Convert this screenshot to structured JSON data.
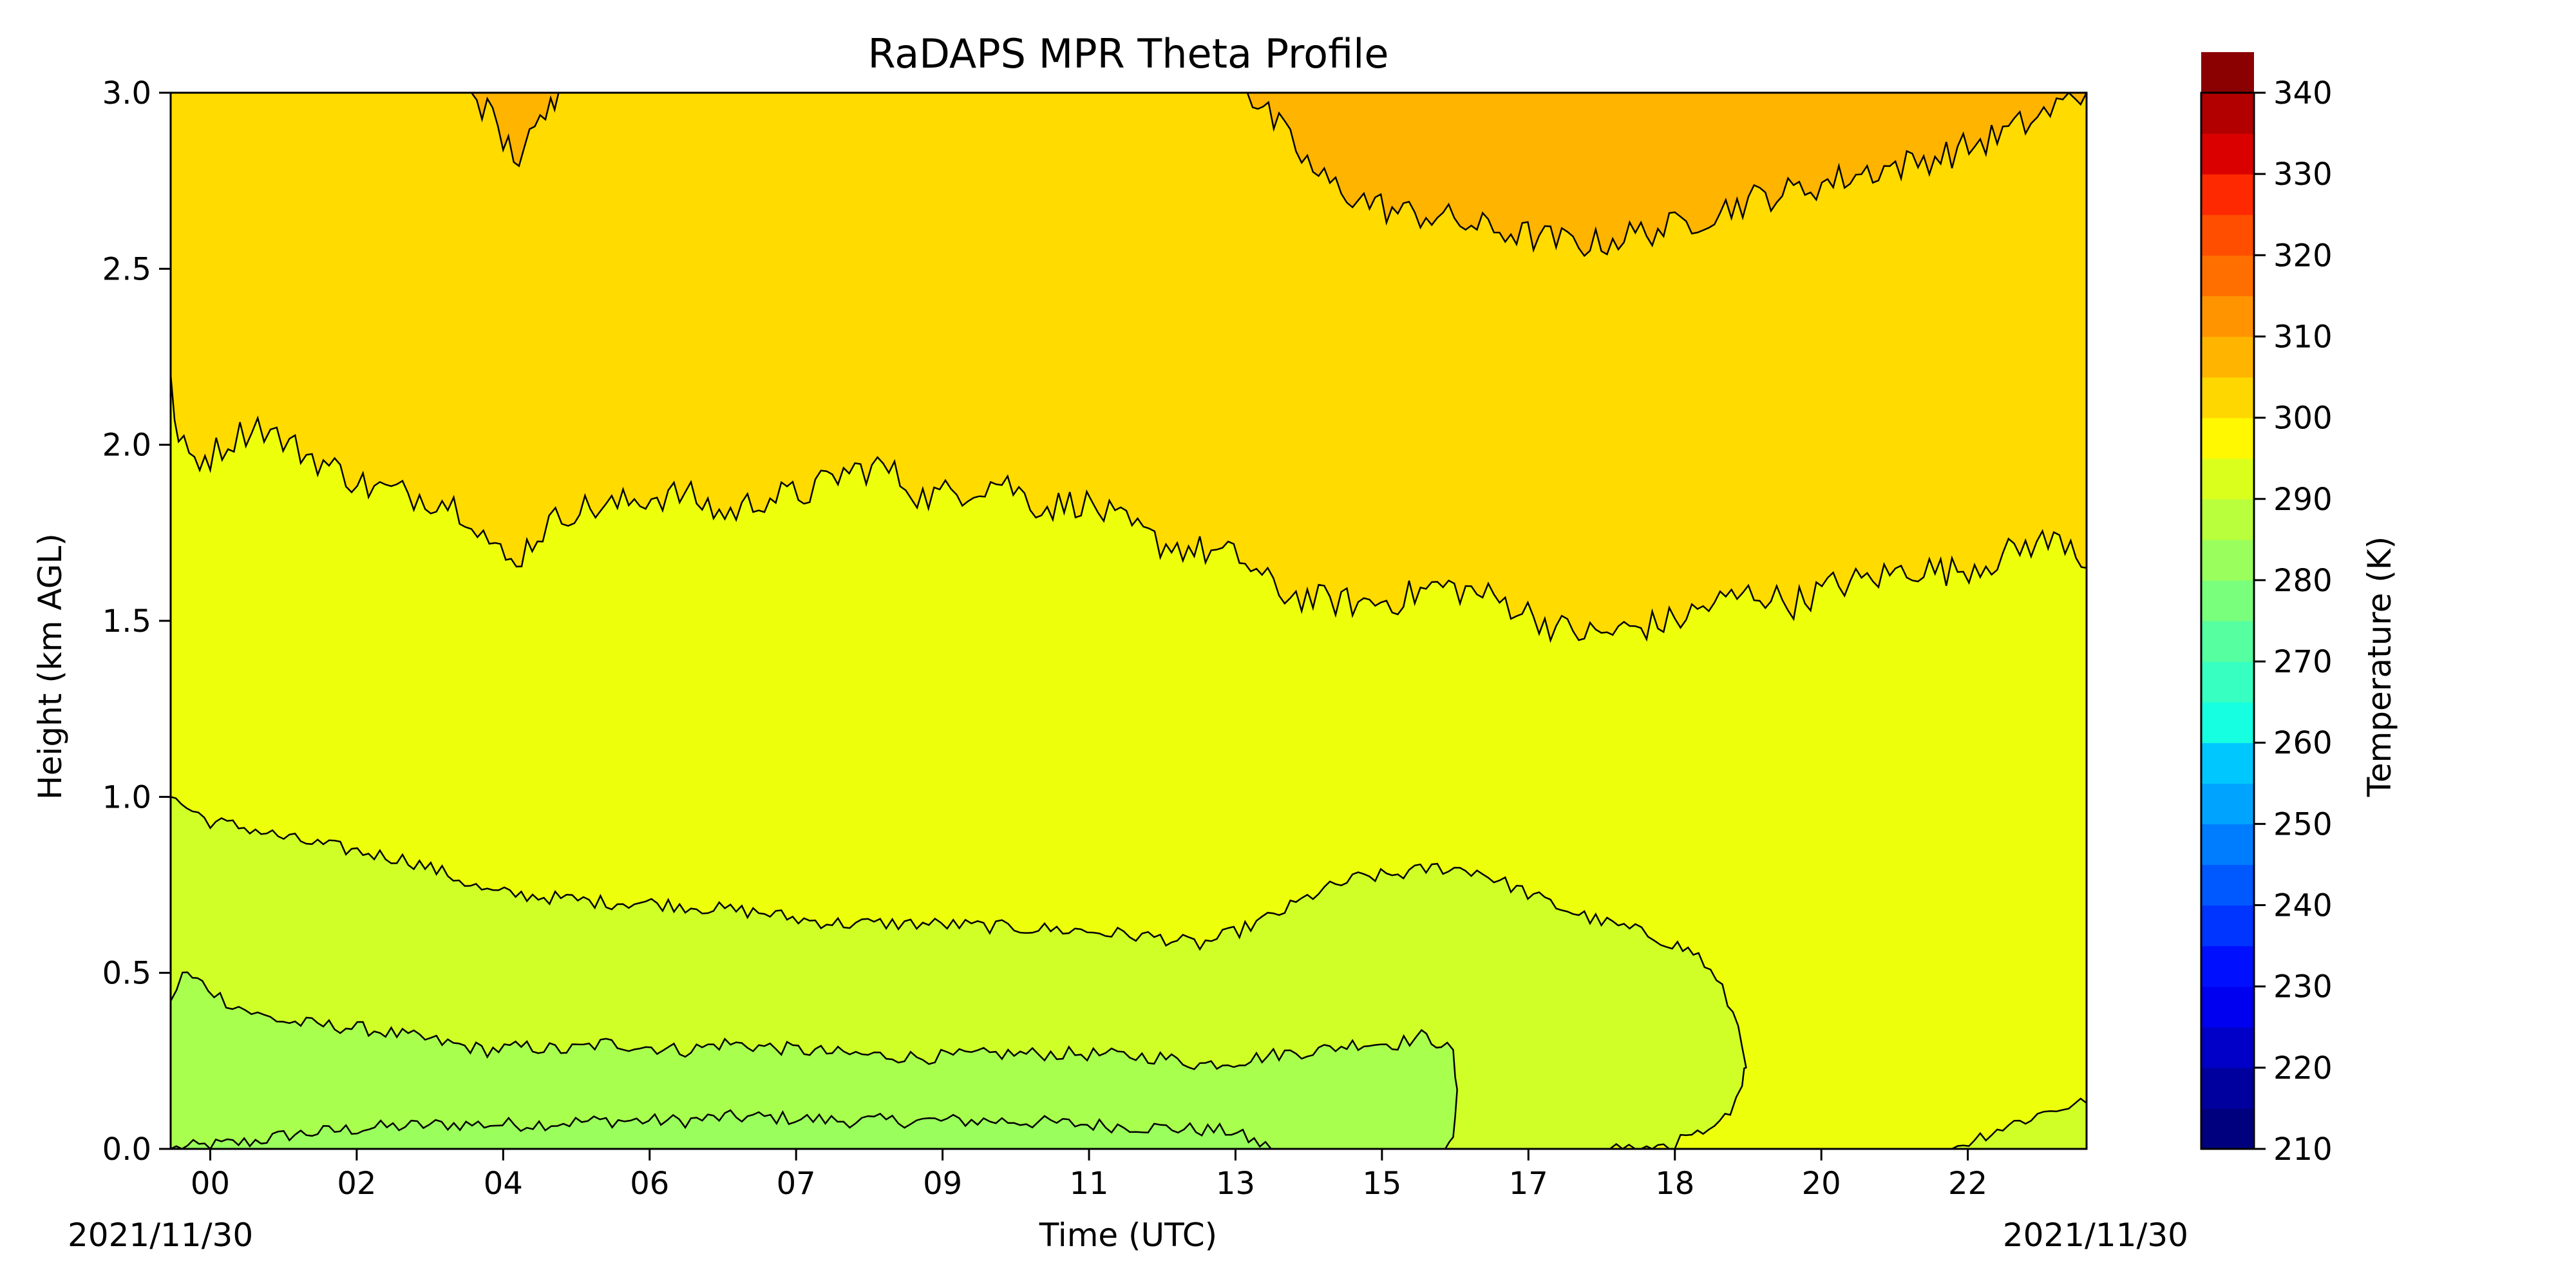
{
  "chart_data": {
    "type": "contour",
    "title": "RaDAPS MPR Theta Profile",
    "xlabel": "Time (UTC)",
    "ylabel": "Height (km AGL)",
    "colorbar_label": "Temperature (K)",
    "start_date_label": "2021/11/30",
    "end_date_label": "2021/11/30",
    "xlim_hours": [
      -0.5,
      23.7
    ],
    "x_ticks": [
      {
        "hour": 0,
        "label": "00"
      },
      {
        "hour": 1.85,
        "label": "02"
      },
      {
        "hour": 3.7,
        "label": "04"
      },
      {
        "hour": 5.55,
        "label": "06"
      },
      {
        "hour": 7.4,
        "label": "07"
      },
      {
        "hour": 9.25,
        "label": "09"
      },
      {
        "hour": 11.1,
        "label": "11"
      },
      {
        "hour": 12.95,
        "label": "13"
      },
      {
        "hour": 14.8,
        "label": "15"
      },
      {
        "hour": 16.65,
        "label": "17"
      },
      {
        "hour": 18.5,
        "label": "18"
      },
      {
        "hour": 20.35,
        "label": "20"
      },
      {
        "hour": 22.2,
        "label": "22"
      }
    ],
    "ylim": [
      0,
      3
    ],
    "y_ticks": [
      {
        "value": 0,
        "label": "0.0"
      },
      {
        "value": 0.5,
        "label": "0.5"
      },
      {
        "value": 1,
        "label": "1.0"
      },
      {
        "value": 1.5,
        "label": "1.5"
      },
      {
        "value": 2,
        "label": "2.0"
      },
      {
        "value": 2.5,
        "label": "2.5"
      },
      {
        "value": 3,
        "label": "3.0"
      }
    ],
    "colorbar": {
      "vmin": 210,
      "vmax": 340,
      "step": 5,
      "colors": [
        "#00007f",
        "#00009f",
        "#0000c8",
        "#0000f1",
        "#0010ff",
        "#0034ff",
        "#0058ff",
        "#007cff",
        "#00a4ff",
        "#00c8fe",
        "#16ffe1",
        "#36ffc1",
        "#56ffa0",
        "#7aff7d",
        "#9aff5d",
        "#baff3c",
        "#dbff1c",
        "#fff800",
        "#ffd700",
        "#ffb400",
        "#ff9400",
        "#ff6f00",
        "#ff4e00",
        "#fe2900",
        "#db0000",
        "#b20000",
        "#8b0000"
      ],
      "ticks": [
        {
          "value": 210,
          "label": "210"
        },
        {
          "value": 220,
          "label": "220"
        },
        {
          "value": 230,
          "label": "230"
        },
        {
          "value": 240,
          "label": "240"
        },
        {
          "value": 250,
          "label": "250"
        },
        {
          "value": 260,
          "label": "260"
        },
        {
          "value": 270,
          "label": "270"
        },
        {
          "value": 280,
          "label": "280"
        },
        {
          "value": 290,
          "label": "290"
        },
        {
          "value": 300,
          "label": "300"
        },
        {
          "value": 310,
          "label": "310"
        },
        {
          "value": 320,
          "label": "320"
        },
        {
          "value": 330,
          "label": "330"
        },
        {
          "value": 340,
          "label": "340"
        }
      ]
    },
    "bands": [
      {
        "range": [
          275,
          280
        ],
        "color": "#9aff5d"
      },
      {
        "range": [
          280,
          285
        ],
        "color": "#a8ff4e"
      },
      {
        "range": [
          285,
          290
        ],
        "color": "#d0ff28"
      },
      {
        "range": [
          290,
          295
        ],
        "color": "#eeff0c"
      },
      {
        "range": [
          295,
          300
        ],
        "color": "#ffdb00"
      },
      {
        "range": [
          300,
          305
        ],
        "color": "#ffb400"
      }
    ],
    "contours": [
      {
        "level": 280,
        "points": [
          [
            -0.5,
            0.0
          ],
          [
            0,
            0.01
          ],
          [
            0.5,
            0.02
          ],
          [
            1,
            0.04
          ],
          [
            1.5,
            0.05
          ],
          [
            2,
            0.06
          ],
          [
            3,
            0.07
          ],
          [
            4,
            0.07
          ],
          [
            5,
            0.08
          ],
          [
            6,
            0.08
          ],
          [
            6.5,
            0.09
          ],
          [
            7,
            0.09
          ],
          [
            8,
            0.08
          ],
          [
            9,
            0.08
          ],
          [
            10,
            0.08
          ],
          [
            11,
            0.07
          ],
          [
            12,
            0.06
          ],
          [
            12.9,
            0.05
          ],
          [
            13.4,
            0.0
          ]
        ]
      },
      {
        "level": 285,
        "points": [
          [
            -0.5,
            0.42
          ],
          [
            -0.35,
            0.5
          ],
          [
            -0.1,
            0.47
          ],
          [
            0.2,
            0.42
          ],
          [
            0.6,
            0.38
          ],
          [
            1,
            0.36
          ],
          [
            1.5,
            0.35
          ],
          [
            2,
            0.34
          ],
          [
            2.5,
            0.32
          ],
          [
            3,
            0.3
          ],
          [
            3.5,
            0.28
          ],
          [
            4,
            0.29
          ],
          [
            4.5,
            0.28
          ],
          [
            5,
            0.3
          ],
          [
            5.5,
            0.29
          ],
          [
            6,
            0.28
          ],
          [
            6.5,
            0.3
          ],
          [
            7,
            0.29
          ],
          [
            7.5,
            0.28
          ],
          [
            8,
            0.27
          ],
          [
            9,
            0.26
          ],
          [
            10,
            0.27
          ],
          [
            11,
            0.27
          ],
          [
            12,
            0.26
          ],
          [
            12.5,
            0.24
          ],
          [
            13,
            0.25
          ],
          [
            13.5,
            0.27
          ],
          [
            14,
            0.28
          ],
          [
            14.5,
            0.3
          ],
          [
            15,
            0.3
          ],
          [
            15.3,
            0.32
          ],
          [
            15.55,
            0.3
          ],
          [
            15.7,
            0.27
          ],
          [
            15.75,
            0.15
          ],
          [
            15.7,
            0.05
          ],
          [
            15.6,
            0.0
          ]
        ]
      },
      {
        "level": 290,
        "points": [
          [
            -0.5,
            1.0
          ],
          [
            -0.3,
            0.97
          ],
          [
            0,
            0.93
          ],
          [
            0.5,
            0.91
          ],
          [
            1,
            0.88
          ],
          [
            1.5,
            0.86
          ],
          [
            2,
            0.84
          ],
          [
            2.5,
            0.82
          ],
          [
            3,
            0.78
          ],
          [
            3.5,
            0.73
          ],
          [
            4,
            0.72
          ],
          [
            4.5,
            0.71
          ],
          [
            5,
            0.7
          ],
          [
            5.5,
            0.7
          ],
          [
            6,
            0.69
          ],
          [
            6.5,
            0.68
          ],
          [
            7,
            0.67
          ],
          [
            7.5,
            0.65
          ],
          [
            8,
            0.64
          ],
          [
            9,
            0.64
          ],
          [
            10,
            0.63
          ],
          [
            11,
            0.62
          ],
          [
            12,
            0.6
          ],
          [
            12.5,
            0.58
          ],
          [
            13,
            0.62
          ],
          [
            13.5,
            0.67
          ],
          [
            14,
            0.73
          ],
          [
            14.5,
            0.77
          ],
          [
            15,
            0.78
          ],
          [
            15.5,
            0.8
          ],
          [
            16,
            0.79
          ],
          [
            16.5,
            0.74
          ],
          [
            17,
            0.69
          ],
          [
            17.5,
            0.65
          ],
          [
            18,
            0.62
          ],
          [
            18.4,
            0.59
          ],
          [
            18.8,
            0.55
          ],
          [
            19.1,
            0.45
          ],
          [
            19.3,
            0.35
          ],
          [
            19.4,
            0.25
          ],
          [
            19.35,
            0.17
          ],
          [
            19.2,
            0.1
          ],
          [
            19.0,
            0.05
          ],
          [
            18.5,
            0.02
          ],
          [
            18.0,
            0.0
          ],
          [
            17.6,
            0.0
          ]
        ]
      },
      {
        "level": 290,
        "points": [
          [
            22.0,
            0.0
          ],
          [
            22.5,
            0.05
          ],
          [
            23,
            0.09
          ],
          [
            23.4,
            0.12
          ],
          [
            23.7,
            0.13
          ]
        ]
      },
      {
        "level": 295,
        "points": [
          [
            -0.5,
            2.2
          ],
          [
            -0.4,
            2.0
          ],
          [
            -0.2,
            1.96
          ],
          [
            0,
            1.97
          ],
          [
            0.3,
            2.02
          ],
          [
            0.6,
            2.06
          ],
          [
            1,
            2.0
          ],
          [
            1.5,
            1.94
          ],
          [
            2,
            1.88
          ],
          [
            2.5,
            1.86
          ],
          [
            3,
            1.84
          ],
          [
            3.3,
            1.8
          ],
          [
            3.6,
            1.7
          ],
          [
            3.8,
            1.66
          ],
          [
            4.2,
            1.76
          ],
          [
            4.6,
            1.82
          ],
          [
            5,
            1.82
          ],
          [
            5.5,
            1.85
          ],
          [
            6,
            1.86
          ],
          [
            6.5,
            1.8
          ],
          [
            7,
            1.85
          ],
          [
            7.5,
            1.86
          ],
          [
            8,
            1.92
          ],
          [
            8.5,
            1.94
          ],
          [
            9,
            1.85
          ],
          [
            9.5,
            1.87
          ],
          [
            10,
            1.9
          ],
          [
            10.5,
            1.82
          ],
          [
            11,
            1.84
          ],
          [
            11.5,
            1.78
          ],
          [
            12,
            1.72
          ],
          [
            12.5,
            1.7
          ],
          [
            13,
            1.68
          ],
          [
            13.5,
            1.58
          ],
          [
            14,
            1.56
          ],
          [
            14.5,
            1.55
          ],
          [
            15,
            1.56
          ],
          [
            15.5,
            1.6
          ],
          [
            16,
            1.58
          ],
          [
            16.5,
            1.54
          ],
          [
            17,
            1.48
          ],
          [
            17.5,
            1.46
          ],
          [
            18,
            1.48
          ],
          [
            18.5,
            1.5
          ],
          [
            19,
            1.55
          ],
          [
            19.5,
            1.58
          ],
          [
            20,
            1.55
          ],
          [
            20.5,
            1.6
          ],
          [
            21,
            1.62
          ],
          [
            21.5,
            1.65
          ],
          [
            22,
            1.64
          ],
          [
            22.5,
            1.67
          ],
          [
            23,
            1.72
          ],
          [
            23.5,
            1.73
          ],
          [
            23.7,
            1.65
          ]
        ]
      },
      {
        "level": 300,
        "points": [
          [
            13.1,
            3.0
          ],
          [
            13.5,
            2.9
          ],
          [
            14,
            2.76
          ],
          [
            14.5,
            2.7
          ],
          [
            15,
            2.66
          ],
          [
            15.5,
            2.65
          ],
          [
            16,
            2.62
          ],
          [
            16.5,
            2.6
          ],
          [
            17,
            2.58
          ],
          [
            17.5,
            2.57
          ],
          [
            18,
            2.6
          ],
          [
            18.5,
            2.62
          ],
          [
            19,
            2.66
          ],
          [
            19.5,
            2.7
          ],
          [
            20,
            2.72
          ],
          [
            20.5,
            2.75
          ],
          [
            21,
            2.78
          ],
          [
            21.5,
            2.8
          ],
          [
            22,
            2.83
          ],
          [
            22.5,
            2.87
          ],
          [
            23,
            2.92
          ],
          [
            23.4,
            2.97
          ],
          [
            23.7,
            3.0
          ]
        ]
      },
      {
        "level": 300,
        "points": [
          [
            3.3,
            3.0
          ],
          [
            3.5,
            2.95
          ],
          [
            3.7,
            2.86
          ],
          [
            3.9,
            2.82
          ],
          [
            4.1,
            2.88
          ],
          [
            4.3,
            2.96
          ],
          [
            4.4,
            3.0
          ]
        ]
      }
    ]
  }
}
